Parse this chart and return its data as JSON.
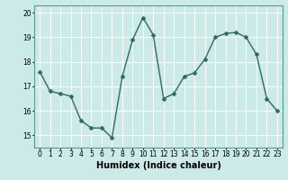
{
  "x": [
    0,
    1,
    2,
    3,
    4,
    5,
    6,
    7,
    8,
    9,
    10,
    11,
    12,
    13,
    14,
    15,
    16,
    17,
    18,
    19,
    20,
    21,
    22,
    23
  ],
  "y": [
    17.6,
    16.8,
    16.7,
    16.6,
    15.6,
    15.3,
    15.3,
    14.9,
    17.4,
    18.9,
    19.8,
    19.1,
    16.5,
    16.7,
    17.4,
    17.55,
    18.1,
    19.0,
    19.15,
    19.2,
    19.0,
    18.3,
    16.5,
    16.0
  ],
  "line_color": "#2e6b5e",
  "marker": "D",
  "marker_size": 2.5,
  "bg_color": "#cceae7",
  "grid_color": "#ffffff",
  "xlabel": "Humidex (Indice chaleur)",
  "xlim": [
    -0.5,
    23.5
  ],
  "ylim": [
    14.5,
    20.3
  ],
  "yticks": [
    15,
    16,
    17,
    18,
    19,
    20
  ],
  "xticks": [
    0,
    1,
    2,
    3,
    4,
    5,
    6,
    7,
    8,
    9,
    10,
    11,
    12,
    13,
    14,
    15,
    16,
    17,
    18,
    19,
    20,
    21,
    22,
    23
  ],
  "tick_fontsize": 5.5,
  "xlabel_fontsize": 7,
  "linewidth": 1.0,
  "spine_color": "#5a9a90"
}
